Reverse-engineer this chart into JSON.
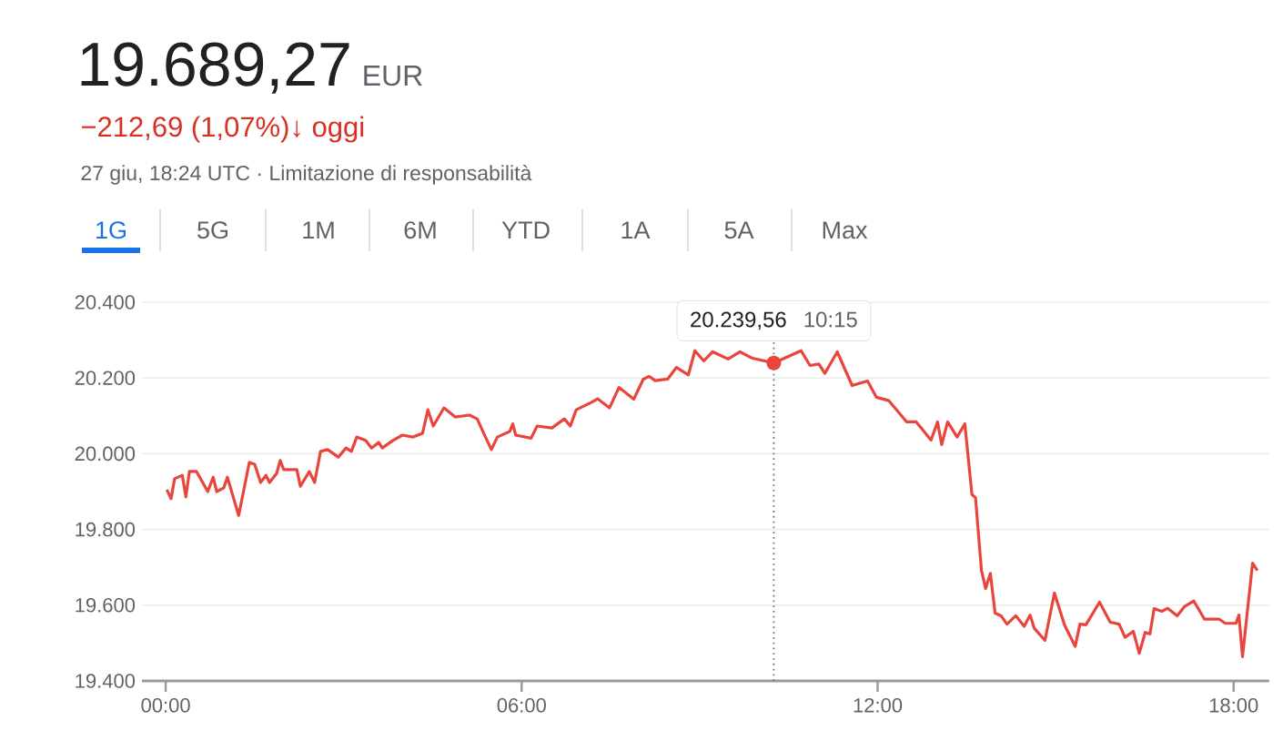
{
  "chart_data": {
    "type": "line",
    "title": "19.689,27",
    "subtitle": "EUR",
    "annotations": [
      "−212,69 (1,07%)↓ oggi",
      "27 giu, 18:24 UTC · Limitazione di responsabilità",
      "1G",
      "5G",
      "1M",
      "6M",
      "YTD",
      "1A",
      "5A",
      "Max",
      {
        "text": "20.239,56",
        "x": 10.25,
        "y": 20239.56
      }
    ],
    "series": [
      {
        "color": "#e8453c",
        "x": [
          0.02,
          0.09,
          0.15,
          0.28,
          0.34,
          0.4,
          0.52,
          0.64,
          0.71,
          0.8,
          0.86,
          0.98,
          1.04,
          1.23,
          1.41,
          1.5,
          1.6,
          1.69,
          1.75,
          1.87,
          1.93,
          1.99,
          2.21,
          2.27,
          2.42,
          2.51,
          2.61,
          2.73,
          2.91,
          3.04,
          3.13,
          3.22,
          3.37,
          3.47,
          3.59,
          3.65,
          3.83,
          3.99,
          4.17,
          4.33,
          4.42,
          4.51,
          4.69,
          4.88,
          5.12,
          5.25,
          5.39,
          5.49,
          5.59,
          5.8,
          5.85,
          5.9,
          6.16,
          6.26,
          6.51,
          6.72,
          6.82,
          6.92,
          7.18,
          7.28,
          7.48,
          7.64,
          7.89,
          8.05,
          8.15,
          8.25,
          8.46,
          8.61,
          8.81,
          8.92,
          9.07,
          9.22,
          9.48,
          9.68,
          9.89,
          10.25,
          10.71,
          10.86,
          11.01,
          11.11,
          11.32,
          11.57,
          11.83,
          11.98,
          12.19,
          12.34,
          12.49,
          12.65,
          12.9,
          13.01,
          13.08,
          13.18,
          13.34,
          13.47,
          13.59,
          13.65,
          13.75,
          13.82,
          13.9,
          13.98,
          14.08,
          14.18,
          14.33,
          14.47,
          14.57,
          14.64,
          14.82,
          14.98,
          15.15,
          15.33,
          15.41,
          15.51,
          15.74,
          15.92,
          16.07,
          16.17,
          16.31,
          16.41,
          16.51,
          16.59,
          16.66,
          16.79,
          16.89,
          17.05,
          17.17,
          17.33,
          17.51,
          17.76,
          17.86,
          18.04,
          18.09,
          18.15,
          18.32,
          18.4
        ],
        "values": [
          19905,
          19881,
          19934,
          19943,
          19886,
          19953,
          19953,
          19919,
          19900,
          19938,
          19900,
          19910,
          19938,
          19837,
          19977,
          19972,
          19924,
          19943,
          19924,
          19948,
          19982,
          19958,
          19958,
          19914,
          19953,
          19924,
          20006,
          20011,
          19991,
          20015,
          20006,
          20044,
          20035,
          20015,
          20030,
          20015,
          20035,
          20049,
          20044,
          20054,
          20116,
          20073,
          20121,
          20097,
          20102,
          20092,
          20044,
          20011,
          20044,
          20059,
          20079,
          20049,
          20041,
          20073,
          20068,
          20092,
          20073,
          20116,
          20136,
          20145,
          20121,
          20175,
          20144,
          20197,
          20204,
          20193,
          20197,
          20228,
          20208,
          20272,
          20245,
          20269,
          20250,
          20269,
          20252,
          20239.56,
          20272,
          20233,
          20237,
          20212,
          20269,
          20180,
          20192,
          20149,
          20140,
          20112,
          20084,
          20084,
          20036,
          20084,
          20024,
          20084,
          20044,
          20079,
          19892,
          19884,
          19692,
          19644,
          19684,
          19579,
          19572,
          19550,
          19572,
          19544,
          19574,
          19539,
          19507,
          19632,
          19548,
          19491,
          19550,
          19548,
          19608,
          19555,
          19550,
          19515,
          19531,
          19473,
          19528,
          19524,
          19591,
          19584,
          19592,
          19572,
          19596,
          19611,
          19563,
          19563,
          19552,
          19552,
          19574,
          19464,
          19711,
          19692
        ]
      }
    ],
    "xlim": [
      -0.4,
      18.6
    ],
    "ylim": [
      19400,
      20400
    ],
    "xticks": [
      {
        "value": 0,
        "label": "00:00"
      },
      {
        "value": 6,
        "label": "06:00"
      },
      {
        "value": 12,
        "label": "12:00"
      },
      {
        "value": 18,
        "label": "18:00"
      }
    ],
    "yticks": [
      {
        "value": 19400,
        "label": "19.400"
      },
      {
        "value": 19600,
        "label": "19.600"
      },
      {
        "value": 19800,
        "label": "19.800"
      },
      {
        "value": 20000,
        "label": "20.000"
      },
      {
        "value": 20200,
        "label": "20.200"
      },
      {
        "value": 20400,
        "label": "20.400"
      }
    ],
    "ref_lines": [
      {
        "axis": "x",
        "value": 10.25,
        "label": "10:15",
        "line_style": "dotted",
        "color": "#70757a"
      }
    ],
    "grid": "y",
    "marker": "none",
    "line_style": "solid"
  }
}
